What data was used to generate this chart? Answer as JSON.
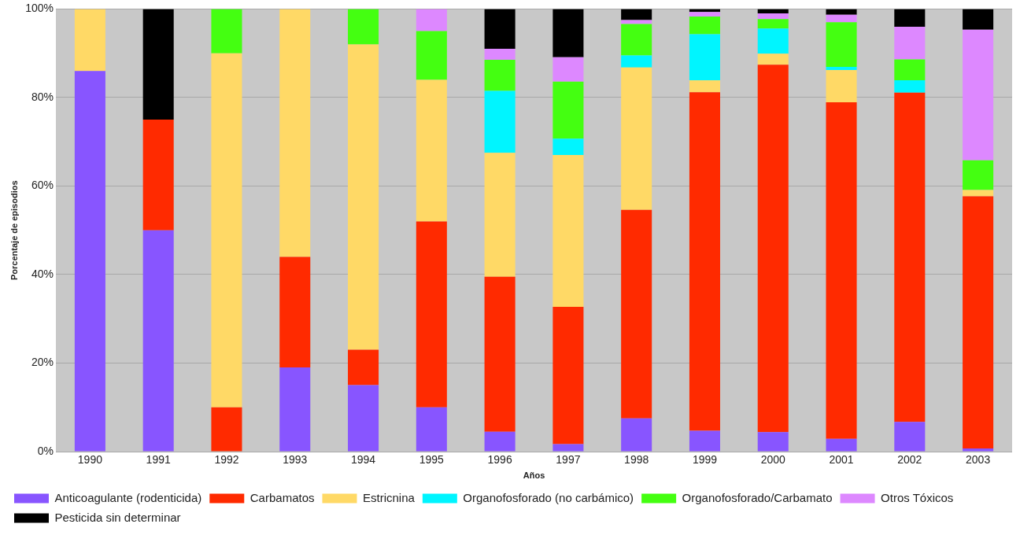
{
  "chart_data": {
    "type": "bar",
    "stacked": true,
    "xlabel": "Años",
    "ylabel": "Porcentaje de episodios",
    "categories": [
      "1990",
      "1991",
      "1992",
      "1993",
      "1994",
      "1995",
      "1996",
      "1997",
      "1998",
      "1999",
      "2000",
      "2001",
      "2002",
      "2003"
    ],
    "ylim": [
      0,
      100
    ],
    "yticks": [
      {
        "value": 0,
        "label": "0%"
      },
      {
        "value": 20,
        "label": "20%"
      },
      {
        "value": 40,
        "label": "40%"
      },
      {
        "value": 60,
        "label": "60%"
      },
      {
        "value": 80,
        "label": "80%"
      },
      {
        "value": 100,
        "label": "100%"
      }
    ],
    "grid": "y",
    "legend": "bottom",
    "series": [
      {
        "name": "Anticoagulante (rodenticida)",
        "color": "#8855ff",
        "values": [
          86,
          50,
          0,
          19,
          15,
          10,
          4.5,
          1.7,
          7.5,
          4.7,
          4.4,
          2.9,
          6.7,
          0.7
        ]
      },
      {
        "name": "Carbamatos",
        "color": "#ff2a00",
        "values": [
          0,
          25,
          10,
          25,
          8,
          42,
          35,
          31,
          47.1,
          76.5,
          83,
          76,
          74.4,
          57
        ]
      },
      {
        "name": "Estricnina",
        "color": "#ffd966",
        "values": [
          14,
          0,
          80,
          56,
          69,
          32,
          28,
          34.3,
          32.2,
          2.7,
          2.5,
          7.3,
          0,
          1.4
        ]
      },
      {
        "name": "Organofosforado (no carbámico)",
        "color": "#00f5ff",
        "values": [
          0,
          0,
          0,
          0,
          0,
          0,
          14,
          3.7,
          2.7,
          10.4,
          5.7,
          0.7,
          2.8,
          0
        ]
      },
      {
        "name": "Organofosforado/Carbamato",
        "color": "#44ff11",
        "values": [
          0,
          0,
          10,
          0,
          8,
          11,
          7,
          12.9,
          7.1,
          4,
          2.1,
          10.1,
          4.7,
          6.7
        ]
      },
      {
        "name": "Otros Tóxicos",
        "color": "#dd88ff",
        "values": [
          0,
          0,
          0,
          0,
          0,
          5,
          2.5,
          5.5,
          0.9,
          1,
          1.3,
          1.7,
          7.4,
          29.5
        ]
      },
      {
        "name": "Pesticida sin determinar",
        "color": "#000000",
        "values": [
          0,
          25,
          0,
          0,
          0,
          0,
          9,
          10.9,
          2.5,
          0.7,
          1,
          1.3,
          4,
          4.7
        ]
      }
    ]
  }
}
